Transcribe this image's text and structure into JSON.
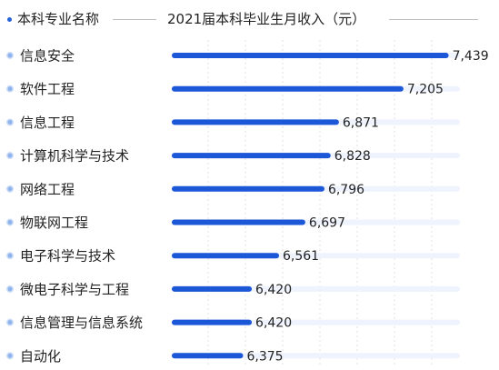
{
  "header": {
    "col1_label": "本科专业名称",
    "col2_label": "2021届本科毕业生月收入（元）"
  },
  "colors": {
    "bar": "#1b57d6",
    "track": "#eef3fd",
    "bullet": "#8fb3ec",
    "bullet_border": "#c9dbf6",
    "header_dot": "#2563d9",
    "grid": "#e2e2e2"
  },
  "chart_data": {
    "type": "bar",
    "orientation": "horizontal",
    "title": "",
    "xlabel": "2021届本科毕业生月收入（元）",
    "ylabel": "本科专业名称",
    "grid": true,
    "categories": [
      "信息安全",
      "软件工程",
      "信息工程",
      "计算机科学与技术",
      "网络工程",
      "物联网工程",
      "电子科学与技术",
      "微电子科学与工程",
      "信息管理与信息系统",
      "自动化"
    ],
    "values": [
      7439,
      7205,
      6871,
      6828,
      6796,
      6697,
      6561,
      6420,
      6420,
      6375
    ],
    "value_labels": [
      "7,439",
      "7,205",
      "6,871",
      "6,828",
      "6,796",
      "6,697",
      "6,561",
      "6,420",
      "6,420",
      "6,375"
    ]
  }
}
